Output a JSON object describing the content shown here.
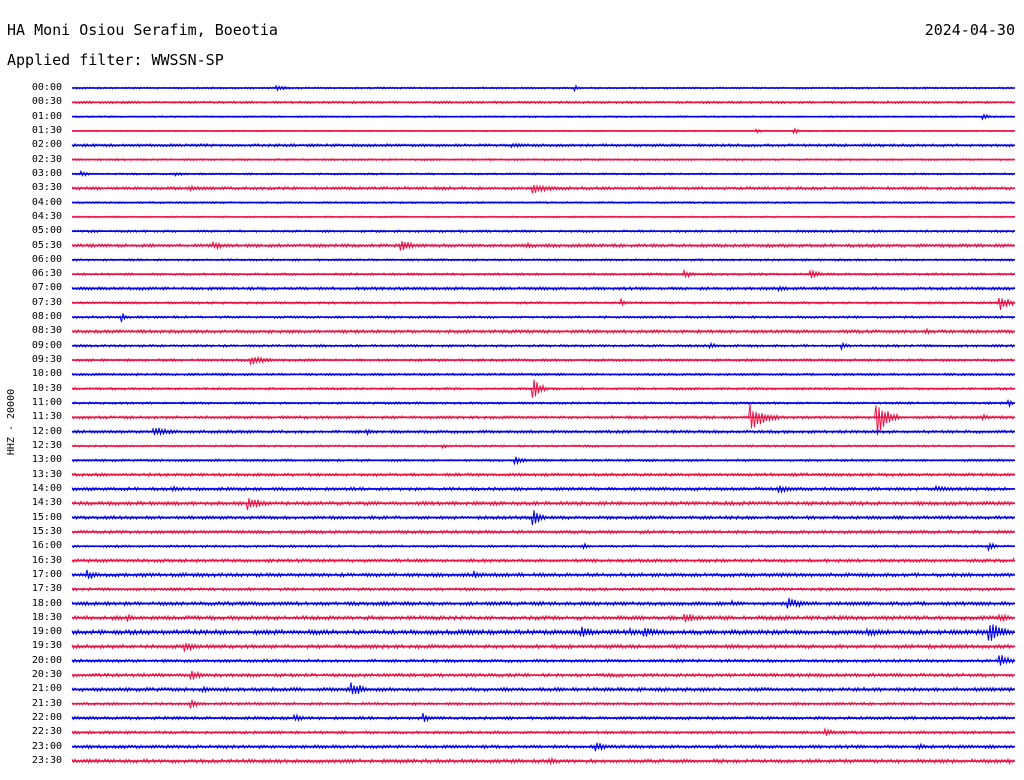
{
  "header": {
    "station": "HA Moni Osiou Serafim, Boeotia",
    "filter": "Applied filter: WWSSN-SP",
    "date": "2024-04-30",
    "channel": "HHZ - 20000"
  },
  "colors": {
    "even_trace": "#0000ee",
    "odd_trace": "#ee1144",
    "text": "#000000"
  },
  "chart_data": {
    "type": "line",
    "title": "HA Moni Osiou Serafim, Boeotia",
    "xlabel": "",
    "ylabel": "HHZ - 20000",
    "grid": false,
    "legend": "none",
    "rows": [
      "00:00",
      "00:30",
      "01:00",
      "01:30",
      "02:00",
      "02:30",
      "03:00",
      "03:30",
      "04:00",
      "04:30",
      "05:00",
      "05:30",
      "06:00",
      "06:30",
      "07:00",
      "07:30",
      "08:00",
      "08:30",
      "09:00",
      "09:30",
      "10:00",
      "10:30",
      "11:00",
      "11:30",
      "12:00",
      "12:30",
      "13:00",
      "13:30",
      "14:00",
      "14:30",
      "15:00",
      "15:30",
      "16:00",
      "16:30",
      "17:00",
      "17:30",
      "18:00",
      "18:30",
      "19:00",
      "19:30",
      "20:00",
      "20:30",
      "21:00",
      "21:30",
      "22:00",
      "22:30",
      "23:00",
      "23:30"
    ],
    "noise_level": [
      0.8,
      1.0,
      0.7,
      0.6,
      1.2,
      0.8,
      0.8,
      1.3,
      0.8,
      0.7,
      1.0,
      1.4,
      0.9,
      1.0,
      1.3,
      1.0,
      1.0,
      1.4,
      1.1,
      1.1,
      1.0,
      1.0,
      1.0,
      1.2,
      1.3,
      0.9,
      1.0,
      1.3,
      1.4,
      1.6,
      1.4,
      1.4,
      1.0,
      1.4,
      1.6,
      1.2,
      1.6,
      1.7,
      2.0,
      1.6,
      1.3,
      1.5,
      1.6,
      1.2,
      1.3,
      1.2,
      1.4,
      1.6
    ],
    "events": [
      {
        "row": "00:00",
        "minute": 6.5,
        "amp": 3,
        "dur": 0.8
      },
      {
        "row": "00:00",
        "minute": 16,
        "amp": 3,
        "dur": 0.3
      },
      {
        "row": "01:00",
        "minute": 29,
        "amp": 3,
        "dur": 0.5
      },
      {
        "row": "01:30",
        "minute": 21.8,
        "amp": 3,
        "dur": 0.2
      },
      {
        "row": "01:30",
        "minute": 23,
        "amp": 3,
        "dur": 0.2
      },
      {
        "row": "02:00",
        "minute": 14,
        "amp": 3,
        "dur": 1
      },
      {
        "row": "03:00",
        "minute": 0.3,
        "amp": 3,
        "dur": 0.5
      },
      {
        "row": "03:00",
        "minute": 3.3,
        "amp": 2.5,
        "dur": 0.6
      },
      {
        "row": "03:30",
        "minute": 3.8,
        "amp": 3,
        "dur": 1.2
      },
      {
        "row": "03:30",
        "minute": 14.7,
        "amp": 5,
        "dur": 1.2
      },
      {
        "row": "05:30",
        "minute": 4.5,
        "amp": 4,
        "dur": 1.0
      },
      {
        "row": "05:30",
        "minute": 10.5,
        "amp": 6,
        "dur": 0.8
      },
      {
        "row": "05:30",
        "minute": 14.5,
        "amp": 3,
        "dur": 0.6
      },
      {
        "row": "06:30",
        "minute": 19.5,
        "amp": 4,
        "dur": 0.5
      },
      {
        "row": "06:30",
        "minute": 23.5,
        "amp": 5,
        "dur": 0.6
      },
      {
        "row": "07:00",
        "minute": 22.5,
        "amp": 3,
        "dur": 0.5
      },
      {
        "row": "07:30",
        "minute": 17.5,
        "amp": 4,
        "dur": 0.2
      },
      {
        "row": "07:30",
        "minute": 29.5,
        "amp": 8,
        "dur": 0.7
      },
      {
        "row": "08:00",
        "minute": 1.6,
        "amp": 5,
        "dur": 0.15
      },
      {
        "row": "08:30",
        "minute": 27.2,
        "amp": 3,
        "dur": 0.3
      },
      {
        "row": "09:00",
        "minute": 20.3,
        "amp": 3,
        "dur": 0.6
      },
      {
        "row": "09:00",
        "minute": 24.5,
        "amp": 4,
        "dur": 0.3
      },
      {
        "row": "09:30",
        "minute": 5.7,
        "amp": 5,
        "dur": 1.2
      },
      {
        "row": "10:30",
        "minute": 14.7,
        "amp": 10,
        "dur": 0.5
      },
      {
        "row": "11:00",
        "minute": 29.8,
        "amp": 4,
        "dur": 0.2
      },
      {
        "row": "11:30",
        "minute": 21.6,
        "amp": 14,
        "dur": 0.9
      },
      {
        "row": "11:30",
        "minute": 25.6,
        "amp": 20,
        "dur": 0.7
      },
      {
        "row": "11:30",
        "minute": 29.0,
        "amp": 3,
        "dur": 0.5
      },
      {
        "row": "12:00",
        "minute": 2.6,
        "amp": 5,
        "dur": 1.2
      },
      {
        "row": "12:00",
        "minute": 9.4,
        "amp": 3,
        "dur": 0.5
      },
      {
        "row": "12:30",
        "minute": 11.8,
        "amp": 3,
        "dur": 0.2
      },
      {
        "row": "13:00",
        "minute": 14.1,
        "amp": 4,
        "dur": 0.8
      },
      {
        "row": "14:00",
        "minute": 3.2,
        "amp": 3,
        "dur": 0.8
      },
      {
        "row": "14:00",
        "minute": 22.5,
        "amp": 4,
        "dur": 1.4
      },
      {
        "row": "14:00",
        "minute": 27.5,
        "amp": 3,
        "dur": 1.5
      },
      {
        "row": "14:30",
        "minute": 1.2,
        "amp": 3,
        "dur": 0.6
      },
      {
        "row": "14:30",
        "minute": 5.6,
        "amp": 8,
        "dur": 0.8
      },
      {
        "row": "15:00",
        "minute": 14.7,
        "amp": 9,
        "dur": 0.4
      },
      {
        "row": "16:00",
        "minute": 16.3,
        "amp": 3,
        "dur": 0.3
      },
      {
        "row": "16:00",
        "minute": 29.2,
        "amp": 4,
        "dur": 0.4
      },
      {
        "row": "16:30",
        "minute": 30.0,
        "amp": 5,
        "dur": 1.2
      },
      {
        "row": "17:00",
        "minute": 0.5,
        "amp": 6,
        "dur": 0.6
      },
      {
        "row": "17:00",
        "minute": 12.8,
        "amp": 4,
        "dur": 0.8
      },
      {
        "row": "18:00",
        "minute": 21,
        "amp": 4,
        "dur": 0.5
      },
      {
        "row": "18:00",
        "minute": 22.8,
        "amp": 6,
        "dur": 1.0
      },
      {
        "row": "18:30",
        "minute": 1.8,
        "amp": 4,
        "dur": 0.3
      },
      {
        "row": "18:30",
        "minute": 19.5,
        "amp": 6,
        "dur": 0.8
      },
      {
        "row": "18:30",
        "minute": 29.5,
        "amp": 5,
        "dur": 0.8
      },
      {
        "row": "19:00",
        "minute": 16.2,
        "amp": 8,
        "dur": 0.6
      },
      {
        "row": "19:00",
        "minute": 17.8,
        "amp": 4,
        "dur": 0.6
      },
      {
        "row": "19:00",
        "minute": 18.2,
        "amp": 6,
        "dur": 1.0
      },
      {
        "row": "19:00",
        "minute": 25.3,
        "amp": 5,
        "dur": 1.0
      },
      {
        "row": "19:00",
        "minute": 29.2,
        "amp": 10,
        "dur": 1.0
      },
      {
        "row": "19:30",
        "minute": 3.6,
        "amp": 6,
        "dur": 0.6
      },
      {
        "row": "20:00",
        "minute": 29.5,
        "amp": 7,
        "dur": 0.8
      },
      {
        "row": "20:30",
        "minute": 3.8,
        "amp": 6,
        "dur": 0.6
      },
      {
        "row": "21:00",
        "minute": 4.2,
        "amp": 3,
        "dur": 0.4
      },
      {
        "row": "21:00",
        "minute": 8.9,
        "amp": 9,
        "dur": 0.7
      },
      {
        "row": "21:30",
        "minute": 3.8,
        "amp": 6,
        "dur": 0.3
      },
      {
        "row": "22:00",
        "minute": 7.1,
        "amp": 4,
        "dur": 0.5
      },
      {
        "row": "22:00",
        "minute": 11.2,
        "amp": 5,
        "dur": 0.5
      },
      {
        "row": "22:30",
        "minute": 24,
        "amp": 4,
        "dur": 0.5
      },
      {
        "row": "23:00",
        "minute": 16.7,
        "amp": 5,
        "dur": 0.5
      },
      {
        "row": "23:00",
        "minute": 27,
        "amp": 3,
        "dur": 0.5
      },
      {
        "row": "23:30",
        "minute": 15.2,
        "amp": 4,
        "dur": 0.5
      },
      {
        "row": "23:30",
        "minute": 29.8,
        "amp": 3,
        "dur": 0.5
      }
    ]
  }
}
